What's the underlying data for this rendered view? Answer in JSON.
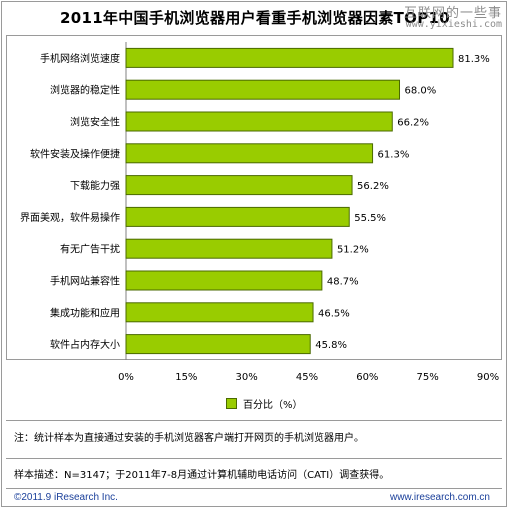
{
  "watermark": {
    "line1": "互联网的一些事",
    "line2": "www.yixieshi.com"
  },
  "chart_data": {
    "type": "bar",
    "orientation": "horizontal",
    "title": "2011年中国手机浏览器用户看重手机浏览器因素TOP10",
    "categories": [
      "手机网络浏览速度",
      "浏览器的稳定性",
      "浏览安全性",
      "软件安装及操作便捷",
      "下载能力强",
      "界面美观，软件易操作",
      "有无广告干扰",
      "手机网站兼容性",
      "集成功能和应用",
      "软件占内存大小"
    ],
    "series": [
      {
        "name": "百分比（%）",
        "values": [
          81.3,
          68.0,
          66.2,
          61.3,
          56.2,
          55.5,
          51.2,
          48.7,
          46.5,
          45.8
        ]
      }
    ],
    "value_labels": [
      "81.3%",
      "68.0%",
      "66.2%",
      "61.3%",
      "56.2%",
      "55.5%",
      "51.2%",
      "48.7%",
      "46.5%",
      "45.8%"
    ],
    "xlim": [
      0,
      90
    ],
    "x_ticks": [
      "0%",
      "15%",
      "30%",
      "45%",
      "60%",
      "75%",
      "90%"
    ],
    "x_tick_values": [
      0,
      15,
      30,
      45,
      60,
      75,
      90
    ],
    "gridlines": true,
    "legend_position": "bottom",
    "colors": {
      "bar": "#99cc00",
      "bar_border": "#4a6a00"
    }
  },
  "note": "注：统计样本为直接通过安装的手机浏览器客户端打开网页的手机浏览器用户。",
  "sample": "样本描述：N=3147；于2011年7-8月通过计算机辅助电话访问（CATI）调查获得。",
  "footer": {
    "copyright": "©2011.9 iResearch Inc.",
    "url": "www.iresearch.com.cn"
  }
}
